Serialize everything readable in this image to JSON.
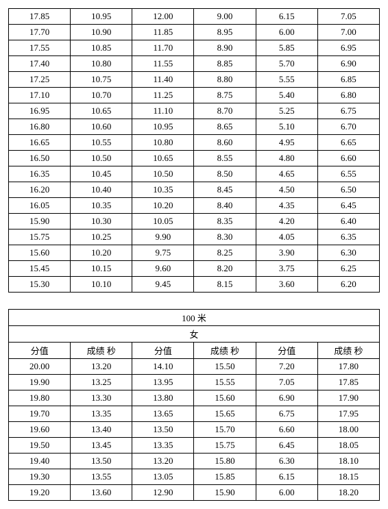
{
  "table1": {
    "columns": 6,
    "rows": [
      [
        "17.85",
        "10.95",
        "12.00",
        "9.00",
        "6.15",
        "7.05"
      ],
      [
        "17.70",
        "10.90",
        "11.85",
        "8.95",
        "6.00",
        "7.00"
      ],
      [
        "17.55",
        "10.85",
        "11.70",
        "8.90",
        "5.85",
        "6.95"
      ],
      [
        "17.40",
        "10.80",
        "11.55",
        "8.85",
        "5.70",
        "6.90"
      ],
      [
        "17.25",
        "10.75",
        "11.40",
        "8.80",
        "5.55",
        "6.85"
      ],
      [
        "17.10",
        "10.70",
        "11.25",
        "8.75",
        "5.40",
        "6.80"
      ],
      [
        "16.95",
        "10.65",
        "11.10",
        "8.70",
        "5.25",
        "6.75"
      ],
      [
        "16.80",
        "10.60",
        "10.95",
        "8.65",
        "5.10",
        "6.70"
      ],
      [
        "16.65",
        "10.55",
        "10.80",
        "8.60",
        "4.95",
        "6.65"
      ],
      [
        "16.50",
        "10.50",
        "10.65",
        "8.55",
        "4.80",
        "6.60"
      ],
      [
        "16.35",
        "10.45",
        "10.50",
        "8.50",
        "4.65",
        "6.55"
      ],
      [
        "16.20",
        "10.40",
        "10.35",
        "8.45",
        "4.50",
        "6.50"
      ],
      [
        "16.05",
        "10.35",
        "10.20",
        "8.40",
        "4.35",
        "6.45"
      ],
      [
        "15.90",
        "10.30",
        "10.05",
        "8.35",
        "4.20",
        "6.40"
      ],
      [
        "15.75",
        "10.25",
        "9.90",
        "8.30",
        "4.05",
        "6.35"
      ],
      [
        "15.60",
        "10.20",
        "9.75",
        "8.25",
        "3.90",
        "6.30"
      ],
      [
        "15.45",
        "10.15",
        "9.60",
        "8.20",
        "3.75",
        "6.25"
      ],
      [
        "15.30",
        "10.10",
        "9.45",
        "8.15",
        "3.60",
        "6.20"
      ]
    ]
  },
  "table2": {
    "title": "100 米",
    "subtitle": "女",
    "headers": [
      "分值",
      "成绩 秒",
      "分值",
      "成绩 秒",
      "分值",
      "成绩 秒"
    ],
    "rows": [
      [
        "20.00",
        "13.20",
        "14.10",
        "15.50",
        "7.20",
        "17.80"
      ],
      [
        "19.90",
        "13.25",
        "13.95",
        "15.55",
        "7.05",
        "17.85"
      ],
      [
        "19.80",
        "13.30",
        "13.80",
        "15.60",
        "6.90",
        "17.90"
      ],
      [
        "19.70",
        "13.35",
        "13.65",
        "15.65",
        "6.75",
        "17.95"
      ],
      [
        "19.60",
        "13.40",
        "13.50",
        "15.70",
        "6.60",
        "18.00"
      ],
      [
        "19.50",
        "13.45",
        "13.35",
        "15.75",
        "6.45",
        "18.05"
      ],
      [
        "19.40",
        "13.50",
        "13.20",
        "15.80",
        "6.30",
        "18.10"
      ],
      [
        "19.30",
        "13.55",
        "13.05",
        "15.85",
        "6.15",
        "18.15"
      ],
      [
        "19.20",
        "13.60",
        "12.90",
        "15.90",
        "6.00",
        "18.20"
      ]
    ]
  }
}
